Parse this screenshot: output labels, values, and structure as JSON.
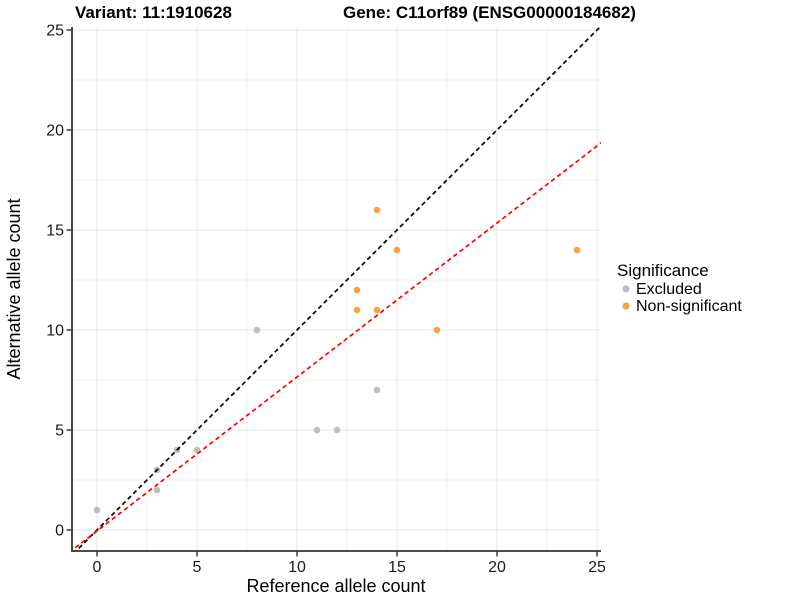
{
  "header": {
    "title_left": "Variant: 11:1910628",
    "title_right": "Gene: C11orf89 (ENSG00000184682)"
  },
  "legend": {
    "title": "Significance",
    "items": [
      {
        "label": "Excluded",
        "color": "#BEBEBE"
      },
      {
        "label": "Non-significant",
        "color": "#F9A242"
      }
    ]
  },
  "chart_data": {
    "type": "scatter",
    "title_left": "Variant: 11:1910628",
    "title_right": "Gene: C11orf89 (ENSG00000184682)",
    "xlabel": "Reference allele count",
    "ylabel": "Alternative allele count",
    "xlim": [
      -1.25,
      26.2
    ],
    "ylim": [
      -1.05,
      25.2
    ],
    "x_ticks": [
      0,
      5,
      10,
      15,
      20,
      25
    ],
    "y_ticks": [
      0,
      5,
      10,
      15,
      20,
      25
    ],
    "grid": {
      "show": true,
      "major_every": 5,
      "minor_every": 2.5,
      "major_color": "#E7E7E7",
      "minor_color": "#F2F2F2"
    },
    "legend_position": "right",
    "series": [
      {
        "name": "Excluded",
        "color": "#BEBEBE",
        "points": [
          [
            0,
            1
          ],
          [
            3,
            2
          ],
          [
            3,
            3
          ],
          [
            4,
            4
          ],
          [
            5,
            4
          ],
          [
            8,
            10
          ],
          [
            11,
            5
          ],
          [
            12,
            5
          ],
          [
            14,
            7
          ]
        ]
      },
      {
        "name": "Non-significant",
        "color": "#F9A242",
        "points": [
          [
            13,
            11
          ],
          [
            13,
            12
          ],
          [
            14,
            11
          ],
          [
            14,
            16
          ],
          [
            15,
            14
          ],
          [
            17,
            10
          ],
          [
            24,
            14
          ]
        ]
      }
    ],
    "lines": [
      {
        "name": "identity-line",
        "style": "dashed",
        "color": "#000000",
        "slope": 1,
        "intercept": 0
      },
      {
        "name": "regression-line",
        "style": "dashed",
        "color": "#FF0000",
        "slope": 0.77,
        "intercept": -0.05
      }
    ]
  }
}
